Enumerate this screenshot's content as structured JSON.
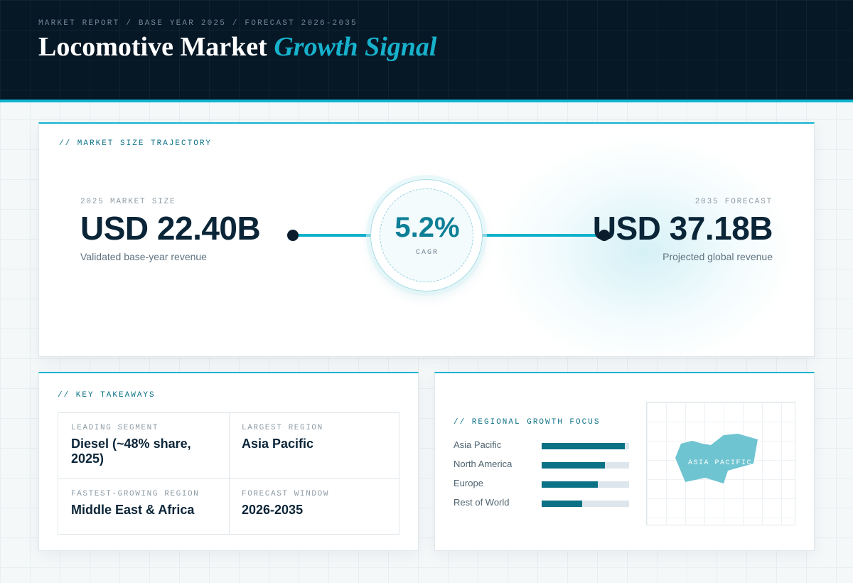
{
  "header": {
    "eyebrow": "MARKET REPORT / BASE YEAR 2025 / FORECAST 2026-2035",
    "title_main": "Locomotive Market",
    "title_accent": "Growth Signal"
  },
  "trajectory": {
    "label": "// MARKET SIZE TRAJECTORY",
    "start": {
      "sub": "2025 MARKET SIZE",
      "value": "USD 22.40B",
      "note": "Validated base-year revenue"
    },
    "end": {
      "sub": "2035 FORECAST",
      "value": "USD 37.18B",
      "note": "Projected global revenue"
    },
    "cagr": {
      "value": "5.2%",
      "label": "CAGR"
    }
  },
  "takeaways": {
    "label": "// KEY TAKEAWAYS",
    "items": [
      {
        "label": "LEADING SEGMENT",
        "value": "Diesel (~48% share, 2025)"
      },
      {
        "label": "LARGEST REGION",
        "value": "Asia Pacific"
      },
      {
        "label": "FASTEST-GROWING REGION",
        "value": "Middle East & Africa"
      },
      {
        "label": "FORECAST WINDOW",
        "value": "2026-2035"
      }
    ]
  },
  "regional": {
    "label": "// REGIONAL GROWTH FOCUS",
    "accent_color": "#0b7185",
    "map_color": "#6fc4d1",
    "map_label": "ASIA PACIFIC",
    "rows": [
      {
        "name": "Asia Pacific",
        "level": 0.95
      },
      {
        "name": "North America",
        "level": 0.72
      },
      {
        "name": "Europe",
        "level": 0.64
      },
      {
        "name": "Rest of World",
        "level": 0.46
      }
    ]
  }
}
